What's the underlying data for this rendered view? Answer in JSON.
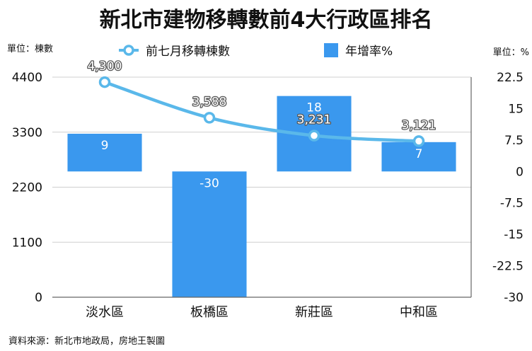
{
  "chart_data": {
    "type": "bar+line",
    "title": "新北市建物移轉數前4大行政區排名",
    "categories": [
      "淡水區",
      "板橋區",
      "新莊區",
      "中和區"
    ],
    "series": [
      {
        "name": "前七月移轉棟數",
        "kind": "line",
        "axis": "left",
        "values": [
          4300,
          3588,
          3231,
          3121
        ],
        "labels": [
          "4,300",
          "3,588",
          "3,231",
          "3,121"
        ],
        "color": "#5ab8ea"
      },
      {
        "name": "年增率%",
        "kind": "bar",
        "axis": "right",
        "values": [
          9,
          -30,
          18,
          7
        ],
        "labels": [
          "9",
          "-30",
          "18",
          "7"
        ],
        "color": "#3a98ee"
      }
    ],
    "left_axis": {
      "unit_label": "單位：棟數",
      "range": [
        0,
        4400
      ],
      "ticks": [
        0,
        1100,
        2200,
        3300,
        4400
      ],
      "tick_labels": [
        "0",
        "1100",
        "2200",
        "3300",
        "4400"
      ]
    },
    "right_axis": {
      "unit_label": "單位：%",
      "range": [
        -30,
        22.5
      ],
      "ticks": [
        -30,
        -22.5,
        -15,
        -7.5,
        0,
        7.5,
        15,
        22.5
      ],
      "tick_labels": [
        "-30",
        "-22.5",
        "-15",
        "-7.5",
        "0",
        "7.5",
        "15",
        "22.5"
      ]
    },
    "legend_position": "top",
    "grid": true,
    "source": "資料來源：新北市地政局，房地王製圖"
  }
}
